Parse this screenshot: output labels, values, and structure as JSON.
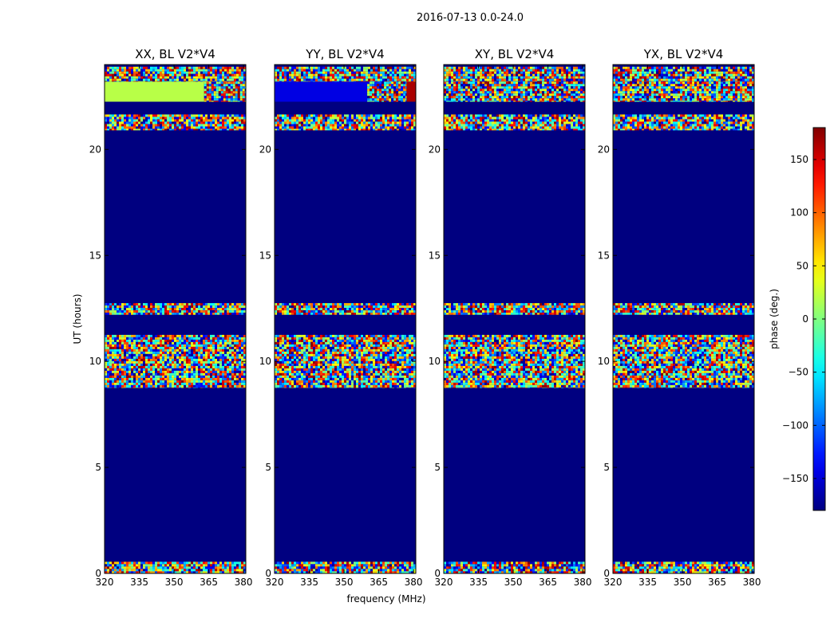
{
  "figure": {
    "suptitle": "2016-07-13 0.0-24.0",
    "xlabel": "frequency (MHz)",
    "ylabel": "UT (hours)"
  },
  "colorbar": {
    "label": "phase (deg.)",
    "range": [
      -180,
      180
    ],
    "ticks": [
      "150",
      "100",
      "50",
      "0",
      "−50",
      "−100",
      "−150"
    ],
    "tick_values": [
      150,
      100,
      50,
      0,
      -50,
      -100,
      -150
    ],
    "colormap": "jet"
  },
  "chart_data": {
    "type": "heatmap",
    "xlim": [
      320,
      381
    ],
    "ylim": [
      0,
      24
    ],
    "x_ticks": [
      "320",
      "335",
      "350",
      "365",
      "380"
    ],
    "x_tick_values": [
      320,
      335,
      350,
      365,
      380
    ],
    "y_ticks": [
      "0",
      "5",
      "10",
      "15",
      "20"
    ],
    "y_tick_values": [
      0,
      5,
      10,
      15,
      20
    ],
    "value_range": [
      -180,
      180
    ],
    "flagged_value": -180,
    "panels": [
      {
        "title": "XX, BL V2*V4",
        "bands": [
          {
            "y": [
              0.0,
              0.55
            ],
            "kind": "noise"
          },
          {
            "y": [
              8.75,
              11.25
            ],
            "kind": "noise"
          },
          {
            "y": [
              12.2,
              12.75
            ],
            "kind": "noise"
          },
          {
            "y": [
              20.9,
              21.65
            ],
            "kind": "noise"
          },
          {
            "y": [
              22.25,
              23.2
            ],
            "kind": "const",
            "value": 20,
            "x_to": 363
          },
          {
            "y": [
              22.25,
              23.2
            ],
            "kind": "noise",
            "x_from": 363
          },
          {
            "y": [
              23.2,
              23.9
            ],
            "kind": "noise"
          }
        ]
      },
      {
        "title": "YY, BL V2*V4",
        "bands": [
          {
            "y": [
              0.0,
              0.55
            ],
            "kind": "noise"
          },
          {
            "y": [
              8.75,
              11.25
            ],
            "kind": "noise"
          },
          {
            "y": [
              12.2,
              12.75
            ],
            "kind": "noise"
          },
          {
            "y": [
              20.9,
              21.65
            ],
            "kind": "noise"
          },
          {
            "y": [
              22.25,
              23.2
            ],
            "kind": "const",
            "value": -145,
            "x_to": 360
          },
          {
            "y": [
              22.25,
              23.2
            ],
            "kind": "noise",
            "x_from": 360,
            "x_to": 377
          },
          {
            "y": [
              22.25,
              23.2
            ],
            "kind": "const",
            "value": 165,
            "x_from": 377
          },
          {
            "y": [
              23.2,
              23.9
            ],
            "kind": "noise"
          }
        ]
      },
      {
        "title": "XY, BL V2*V4",
        "bands": [
          {
            "y": [
              0.0,
              0.55
            ],
            "kind": "noise"
          },
          {
            "y": [
              8.75,
              11.25
            ],
            "kind": "noise"
          },
          {
            "y": [
              12.2,
              12.75
            ],
            "kind": "noise"
          },
          {
            "y": [
              20.9,
              21.65
            ],
            "kind": "noise"
          },
          {
            "y": [
              22.25,
              23.2
            ],
            "kind": "noise"
          },
          {
            "y": [
              23.2,
              23.9
            ],
            "kind": "noise"
          }
        ]
      },
      {
        "title": "YX, BL V2*V4",
        "bands": [
          {
            "y": [
              0.0,
              0.55
            ],
            "kind": "noise"
          },
          {
            "y": [
              8.75,
              11.25
            ],
            "kind": "noise"
          },
          {
            "y": [
              12.2,
              12.75
            ],
            "kind": "noise"
          },
          {
            "y": [
              20.9,
              21.65
            ],
            "kind": "noise"
          },
          {
            "y": [
              22.25,
              23.2
            ],
            "kind": "noise"
          },
          {
            "y": [
              23.2,
              23.9
            ],
            "kind": "noise"
          }
        ]
      }
    ]
  }
}
